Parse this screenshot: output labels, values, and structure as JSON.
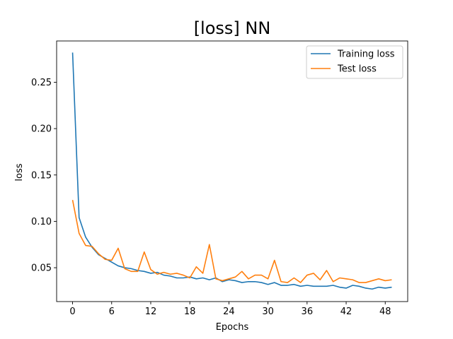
{
  "chart_data": {
    "type": "line",
    "title": "[loss] NN",
    "xlabel": "Epochs",
    "ylabel": "loss",
    "xlim": [
      -2.45,
      51.45
    ],
    "ylim": [
      0.0135,
      0.2945
    ],
    "xticks": [
      0,
      6,
      12,
      18,
      24,
      30,
      36,
      42,
      48
    ],
    "yticks": [
      0.05,
      0.1,
      0.15,
      0.2,
      0.25
    ],
    "ytick_labels": [
      "0.05",
      "0.10",
      "0.15",
      "0.20",
      "0.25"
    ],
    "grid": false,
    "legend_position": "top-right",
    "x": [
      0,
      1,
      2,
      3,
      4,
      5,
      6,
      7,
      8,
      9,
      10,
      11,
      12,
      13,
      14,
      15,
      16,
      17,
      18,
      19,
      20,
      21,
      22,
      23,
      24,
      25,
      26,
      27,
      28,
      29,
      30,
      31,
      32,
      33,
      34,
      35,
      36,
      37,
      38,
      39,
      40,
      41,
      42,
      43,
      44,
      45,
      46,
      47,
      48,
      49
    ],
    "series": [
      {
        "name": "Training loss",
        "color": "#1f77b4",
        "values": [
          0.282,
          0.104,
          0.083,
          0.072,
          0.064,
          0.06,
          0.056,
          0.052,
          0.05,
          0.049,
          0.047,
          0.046,
          0.044,
          0.045,
          0.042,
          0.041,
          0.039,
          0.039,
          0.04,
          0.038,
          0.039,
          0.037,
          0.039,
          0.035,
          0.037,
          0.036,
          0.034,
          0.035,
          0.035,
          0.034,
          0.032,
          0.034,
          0.031,
          0.031,
          0.032,
          0.03,
          0.031,
          0.03,
          0.03,
          0.03,
          0.031,
          0.029,
          0.028,
          0.031,
          0.03,
          0.028,
          0.027,
          0.029,
          0.028,
          0.029
        ]
      },
      {
        "name": "Test loss",
        "color": "#ff7f0e",
        "values": [
          0.123,
          0.087,
          0.074,
          0.073,
          0.065,
          0.059,
          0.058,
          0.071,
          0.049,
          0.046,
          0.046,
          0.067,
          0.048,
          0.043,
          0.045,
          0.043,
          0.044,
          0.042,
          0.039,
          0.051,
          0.044,
          0.075,
          0.038,
          0.036,
          0.038,
          0.04,
          0.046,
          0.038,
          0.042,
          0.042,
          0.038,
          0.058,
          0.035,
          0.034,
          0.039,
          0.034,
          0.042,
          0.044,
          0.037,
          0.047,
          0.035,
          0.039,
          0.038,
          0.037,
          0.034,
          0.034,
          0.036,
          0.038,
          0.036,
          0.037
        ]
      }
    ]
  }
}
